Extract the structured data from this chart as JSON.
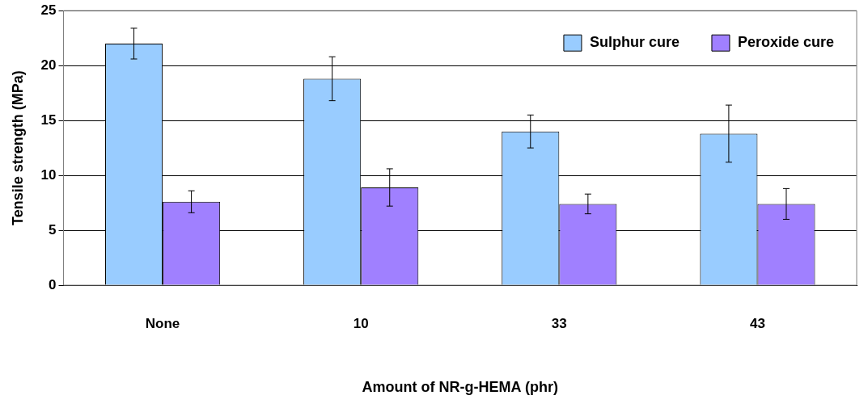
{
  "chart_data": {
    "type": "bar",
    "xlabel": "Amount of NR-g-HEMA (phr)",
    "ylabel": "Tensile strength (MPa)",
    "categories": [
      "None",
      "10",
      "33",
      "43"
    ],
    "series": [
      {
        "name": "Sulphur cure",
        "color": "#99ccff",
        "values": [
          22.0,
          18.8,
          14.0,
          13.8
        ],
        "errors": [
          1.4,
          2.0,
          1.5,
          2.6
        ]
      },
      {
        "name": "Peroxide cure",
        "color": "#a080ff",
        "values": [
          7.6,
          8.9,
          7.4,
          7.4
        ],
        "errors": [
          1.0,
          1.7,
          0.9,
          1.4
        ]
      }
    ],
    "ylim": [
      0,
      25
    ],
    "yticks": [
      0,
      5,
      10,
      15,
      20,
      25
    ],
    "grid": "y",
    "legend": "top right"
  }
}
